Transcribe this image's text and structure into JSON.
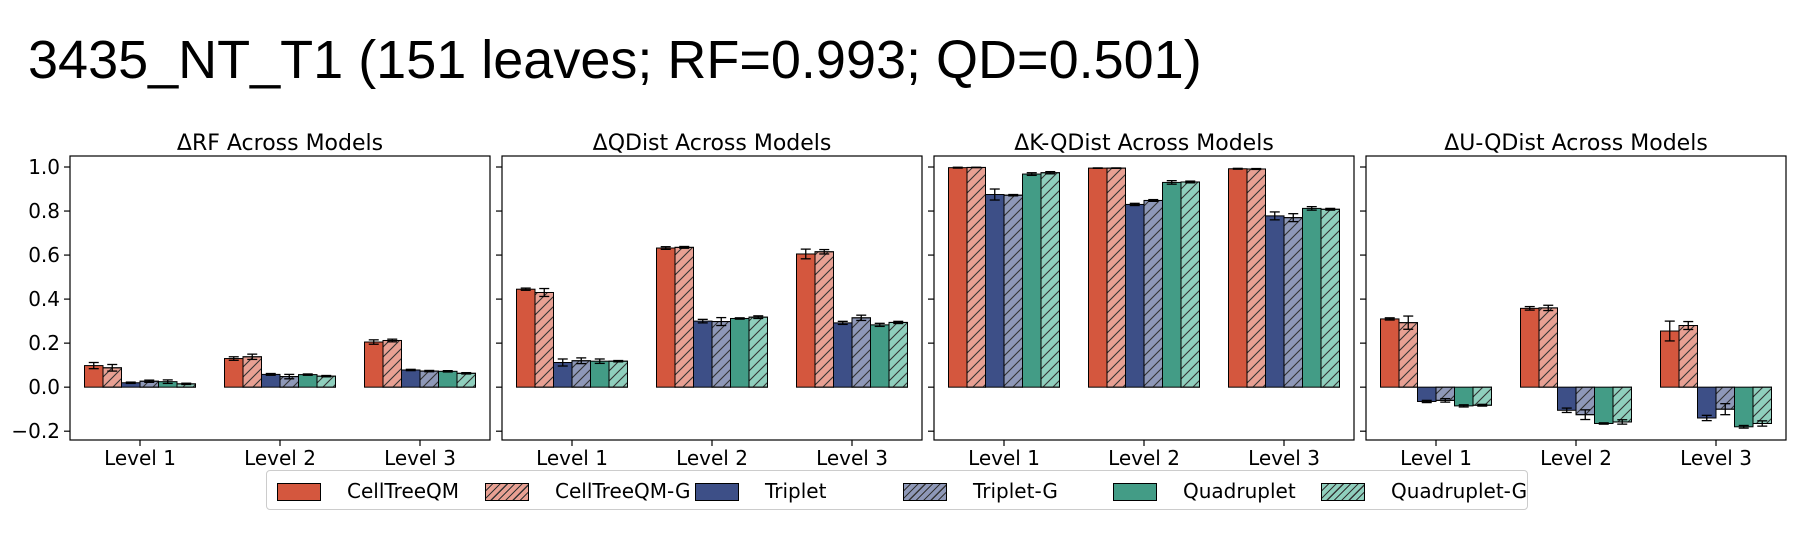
{
  "suptitle": "3435_NT_T1 (151 leaves; RF=0.993; QD=0.501)",
  "colors": {
    "CellTreeQM": "#d4573e",
    "CellTreeQM-G": "#e8a093",
    "Triplet": "#3d4f87",
    "Triplet-G": "#8e98b8",
    "Quadruplet": "#439c86",
    "Quadruplet-G": "#8fcfbd"
  },
  "legend": [
    {
      "name": "CellTreeQM",
      "color": "#d4573e",
      "hatch": false
    },
    {
      "name": "CellTreeQM-G",
      "color": "#e8a093",
      "hatch": true
    },
    {
      "name": "Triplet",
      "color": "#3d4f87",
      "hatch": false
    },
    {
      "name": "Triplet-G",
      "color": "#8e98b8",
      "hatch": true
    },
    {
      "name": "Quadruplet",
      "color": "#439c86",
      "hatch": false
    },
    {
      "name": "Quadruplet-G",
      "color": "#8fcfbd",
      "hatch": true
    }
  ],
  "chart_data": [
    {
      "type": "bar",
      "title": "ΔRF Across Models",
      "categories": [
        "Level 1",
        "Level 2",
        "Level 3"
      ],
      "ylim": [
        -0.24,
        1.05
      ],
      "yticks": [
        "1.0",
        "0.8",
        "0.6",
        "0.4",
        "0.2",
        "0.0",
        "−0.2"
      ],
      "series": [
        {
          "name": "CellTreeQM",
          "values": [
            0.098,
            0.13,
            0.205
          ],
          "errors": [
            0.014,
            0.008,
            0.01
          ]
        },
        {
          "name": "CellTreeQM-G",
          "values": [
            0.088,
            0.138,
            0.212
          ],
          "errors": [
            0.015,
            0.012,
            0.006
          ]
        },
        {
          "name": "Triplet",
          "values": [
            0.02,
            0.058,
            0.078
          ],
          "errors": [
            0.003,
            0.004,
            0.003
          ]
        },
        {
          "name": "Triplet-G",
          "values": [
            0.027,
            0.048,
            0.073
          ],
          "errors": [
            0.005,
            0.01,
            0.003
          ]
        },
        {
          "name": "Quadruplet",
          "values": [
            0.025,
            0.057,
            0.072
          ],
          "errors": [
            0.008,
            0.003,
            0.003
          ]
        },
        {
          "name": "Quadruplet-G",
          "values": [
            0.015,
            0.05,
            0.063
          ],
          "errors": [
            0.003,
            0.003,
            0.003
          ]
        }
      ]
    },
    {
      "type": "bar",
      "title": "ΔQDist Across Models",
      "categories": [
        "Level 1",
        "Level 2",
        "Level 3"
      ],
      "ylim": [
        -0.24,
        1.05
      ],
      "series": [
        {
          "name": "CellTreeQM",
          "values": [
            0.445,
            0.632,
            0.605
          ],
          "errors": [
            0.005,
            0.006,
            0.022
          ]
        },
        {
          "name": "CellTreeQM-G",
          "values": [
            0.43,
            0.635,
            0.615
          ],
          "errors": [
            0.018,
            0.004,
            0.01
          ]
        },
        {
          "name": "Triplet",
          "values": [
            0.112,
            0.3,
            0.292
          ],
          "errors": [
            0.016,
            0.008,
            0.007
          ]
        },
        {
          "name": "Triplet-G",
          "values": [
            0.12,
            0.298,
            0.315
          ],
          "errors": [
            0.013,
            0.018,
            0.012
          ]
        },
        {
          "name": "Quadruplet",
          "values": [
            0.118,
            0.312,
            0.283
          ],
          "errors": [
            0.01,
            0.003,
            0.007
          ]
        },
        {
          "name": "Quadruplet-G",
          "values": [
            0.118,
            0.318,
            0.294
          ],
          "errors": [
            0.003,
            0.006,
            0.005
          ]
        }
      ]
    },
    {
      "type": "bar",
      "title": "ΔK-QDist Across Models",
      "categories": [
        "Level 1",
        "Level 2",
        "Level 3"
      ],
      "ylim": [
        -0.24,
        1.05
      ],
      "series": [
        {
          "name": "CellTreeQM",
          "values": [
            0.997,
            0.995,
            0.992
          ],
          "errors": [
            0.002,
            0.001,
            0.002
          ]
        },
        {
          "name": "CellTreeQM-G",
          "values": [
            0.998,
            0.995,
            0.991
          ],
          "errors": [
            0.001,
            0.001,
            0.002
          ]
        },
        {
          "name": "Triplet",
          "values": [
            0.875,
            0.83,
            0.778
          ],
          "errors": [
            0.025,
            0.005,
            0.018
          ]
        },
        {
          "name": "Triplet-G",
          "values": [
            0.872,
            0.848,
            0.77
          ],
          "errors": [
            0.003,
            0.004,
            0.018
          ]
        },
        {
          "name": "Quadruplet",
          "values": [
            0.968,
            0.93,
            0.812
          ],
          "errors": [
            0.006,
            0.008,
            0.008
          ]
        },
        {
          "name": "Quadruplet-G",
          "values": [
            0.974,
            0.932,
            0.808
          ],
          "errors": [
            0.005,
            0.004,
            0.004
          ]
        }
      ]
    },
    {
      "type": "bar",
      "title": "ΔU-QDist Across Models",
      "categories": [
        "Level 1",
        "Level 2",
        "Level 3"
      ],
      "ylim": [
        -0.24,
        1.05
      ],
      "series": [
        {
          "name": "CellTreeQM",
          "values": [
            0.31,
            0.358,
            0.255
          ],
          "errors": [
            0.005,
            0.008,
            0.045
          ]
        },
        {
          "name": "CellTreeQM-G",
          "values": [
            0.293,
            0.36,
            0.28
          ],
          "errors": [
            0.03,
            0.012,
            0.018
          ]
        },
        {
          "name": "Triplet",
          "values": [
            -0.065,
            -0.105,
            -0.14
          ],
          "errors": [
            0.005,
            0.01,
            0.012
          ]
        },
        {
          "name": "Triplet-G",
          "values": [
            -0.06,
            -0.125,
            -0.1
          ],
          "errors": [
            0.008,
            0.022,
            0.025
          ]
        },
        {
          "name": "Quadruplet",
          "values": [
            -0.085,
            -0.165,
            -0.18
          ],
          "errors": [
            0.005,
            0.003,
            0.006
          ]
        },
        {
          "name": "Quadruplet-G",
          "values": [
            -0.082,
            -0.158,
            -0.165
          ],
          "errors": [
            0.004,
            0.01,
            0.012
          ]
        }
      ]
    }
  ]
}
